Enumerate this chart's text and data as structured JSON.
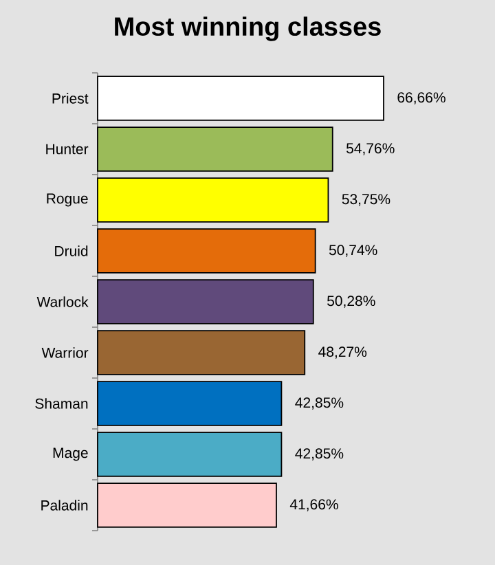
{
  "chart_data": {
    "type": "bar",
    "orientation": "horizontal",
    "title": "Most winning classes",
    "categories": [
      "Priest",
      "Hunter",
      "Rogue",
      "Druid",
      "Warlock",
      "Warrior",
      "Shaman",
      "Mage",
      "Paladin"
    ],
    "values": [
      66.66,
      54.76,
      53.75,
      50.74,
      50.28,
      48.27,
      42.85,
      42.85,
      41.66
    ],
    "colors": [
      "#ffffff",
      "#9bbb59",
      "#ffff00",
      "#e46c0a",
      "#604a7b",
      "#996633",
      "#0070c0",
      "#4bacc6",
      "#ffcccc"
    ],
    "value_labels": [
      "66,66%",
      "54,76%",
      "53,75%",
      "50,74%",
      "50,28%",
      "48,27%",
      "42,85%",
      "42,85%",
      "41,66%"
    ]
  }
}
